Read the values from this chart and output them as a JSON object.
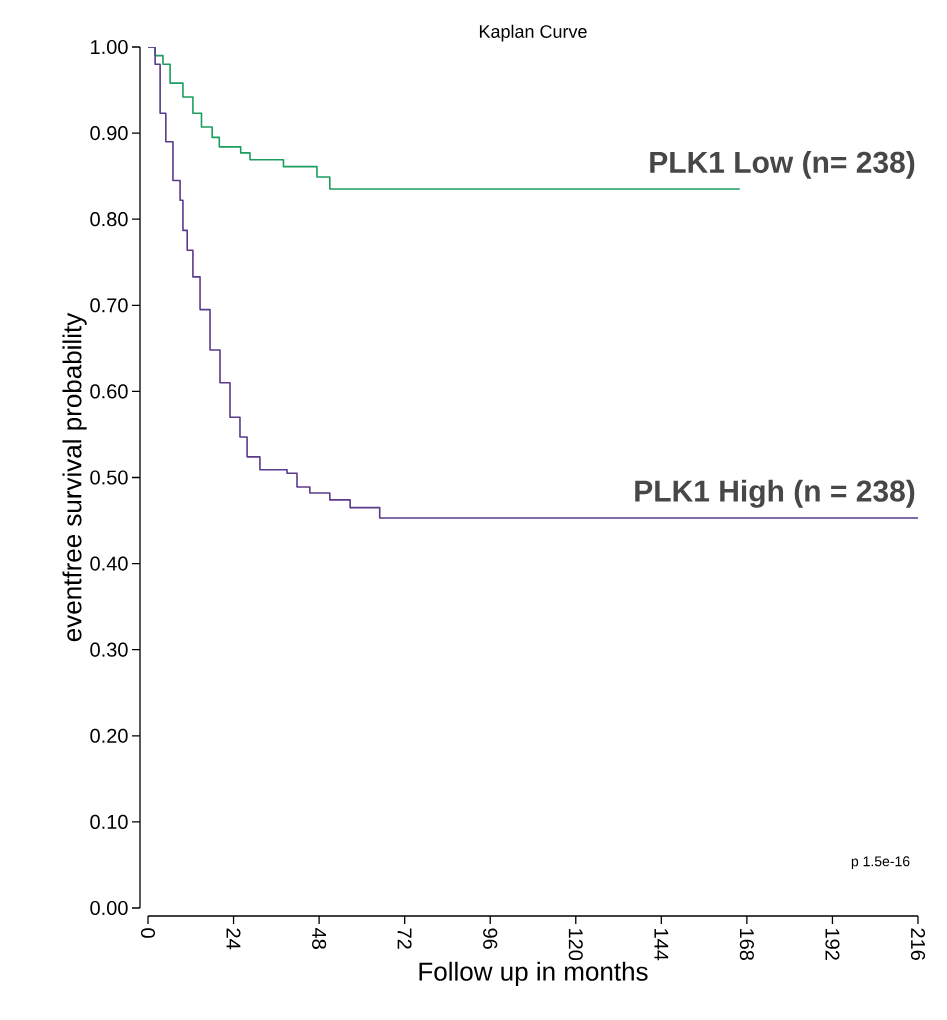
{
  "chart_data": {
    "type": "step",
    "title": "Kaplan Curve",
    "xlabel": "Follow up in months",
    "ylabel": "eventfree survival probability",
    "xlim": [
      0,
      216
    ],
    "xticks": [
      0,
      24,
      48,
      72,
      96,
      120,
      144,
      168,
      192,
      216
    ],
    "ylim": [
      0,
      1
    ],
    "yticks": [
      {
        "value": 0,
        "label": "0.00"
      },
      {
        "value": 0.1,
        "label": "0.10"
      },
      {
        "value": 0.2,
        "label": "0.20"
      },
      {
        "value": 0.3,
        "label": "0.30"
      },
      {
        "value": 0.4,
        "label": "0.40"
      },
      {
        "value": 0.5,
        "label": "0.50"
      },
      {
        "value": 0.6,
        "label": "0.60"
      },
      {
        "value": 0.7,
        "label": "0.70"
      },
      {
        "value": 0.8,
        "label": "0.80"
      },
      {
        "value": 0.9,
        "label": "0.90"
      },
      {
        "value": 1,
        "label": "1.00"
      }
    ],
    "grid": false,
    "legend": false,
    "marker": "none",
    "line_style": "solid",
    "series": [
      {
        "name": "PLK1 Low (n= 238)",
        "color": "#1a9e5f",
        "x": [
          0,
          2,
          4.2,
          6.2,
          9.8,
          12.6,
          15,
          18,
          20,
          26,
          28.6,
          38,
          47.4,
          51,
          166
        ],
        "values": [
          1,
          0.99,
          0.98,
          0.958,
          0.942,
          0.923,
          0.907,
          0.895,
          0.884,
          0.877,
          0.869,
          0.861,
          0.849,
          0.835,
          0.835
        ]
      },
      {
        "name": "PLK1 High (n = 238)",
        "color": "#5b3a8c",
        "x": [
          0,
          2,
          3.4,
          5,
          7,
          9,
          9.8,
          11,
          12.6,
          14.6,
          17.4,
          20.2,
          23,
          25.8,
          27.8,
          31.4,
          39,
          41.8,
          45.4,
          51,
          56.7,
          65,
          216
        ],
        "values": [
          1,
          0.98,
          0.923,
          0.89,
          0.845,
          0.822,
          0.787,
          0.764,
          0.733,
          0.695,
          0.648,
          0.61,
          0.57,
          0.547,
          0.524,
          0.509,
          0.505,
          0.489,
          0.482,
          0.474,
          0.465,
          0.453,
          0.453
        ]
      }
    ],
    "annotations": [
      "p 1.5e-16"
    ]
  }
}
